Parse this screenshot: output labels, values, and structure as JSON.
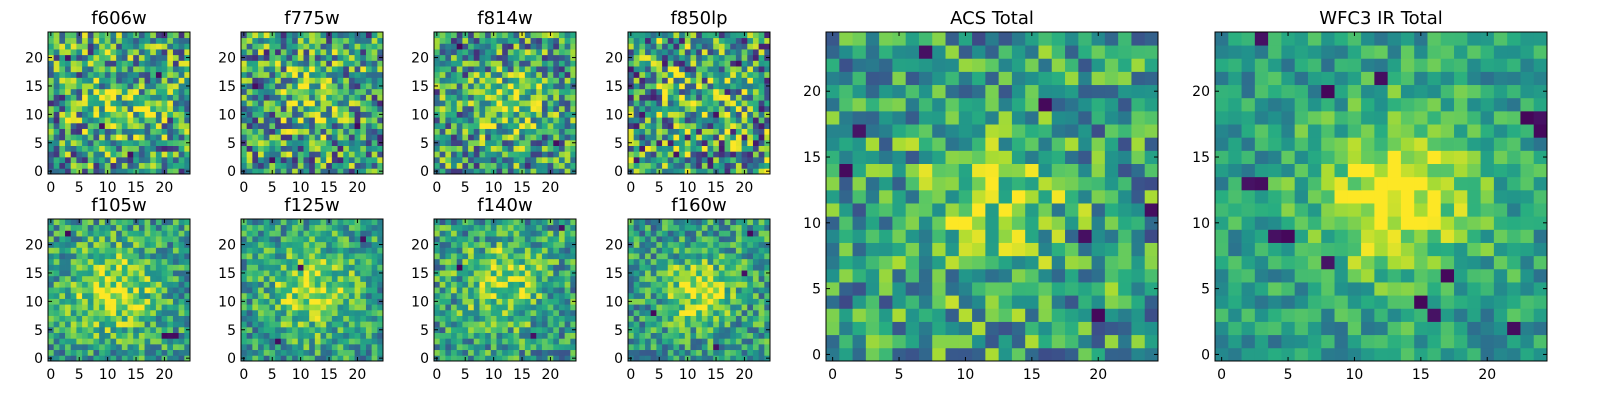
{
  "chart_data": [
    {
      "type": "heatmap",
      "title": "f606w",
      "x_ticks": [
        0,
        5,
        10,
        15,
        20
      ],
      "y_ticks": [
        0,
        5,
        10,
        15,
        20
      ],
      "xlim": [
        -0.5,
        24.5
      ],
      "ylim": [
        -0.5,
        24.5
      ],
      "size": 25,
      "peak": [
        12,
        12
      ],
      "sigma": 4.5,
      "amp": 0.45,
      "noise": 0.85,
      "seed": 11,
      "deep": [
        [
          3,
          20
        ],
        [
          14,
          3
        ],
        [
          19,
          17
        ],
        [
          9,
          8
        ]
      ]
    },
    {
      "type": "heatmap",
      "title": "f775w",
      "x_ticks": [
        0,
        5,
        10,
        15,
        20
      ],
      "y_ticks": [
        0,
        5,
        10,
        15,
        20
      ],
      "xlim": [
        -0.5,
        24.5
      ],
      "ylim": [
        -0.5,
        24.5
      ],
      "size": 25,
      "peak": [
        12,
        14
      ],
      "sigma": 4,
      "amp": 0.5,
      "noise": 0.85,
      "seed": 23,
      "deep": [
        [
          5,
          2
        ],
        [
          20,
          8
        ],
        [
          2,
          15
        ]
      ]
    },
    {
      "type": "heatmap",
      "title": "f814w",
      "x_ticks": [
        0,
        5,
        10,
        15,
        20
      ],
      "y_ticks": [
        0,
        5,
        10,
        15,
        20
      ],
      "xlim": [
        -0.5,
        24.5
      ],
      "ylim": [
        -0.5,
        24.5
      ],
      "size": 25,
      "peak": [
        13,
        12
      ],
      "sigma": 3.8,
      "amp": 0.6,
      "noise": 0.8,
      "seed": 37,
      "deep": [
        [
          21,
          5
        ],
        [
          4,
          22
        ]
      ]
    },
    {
      "type": "heatmap",
      "title": "f850lp",
      "x_ticks": [
        0,
        5,
        10,
        15,
        20
      ],
      "y_ticks": [
        0,
        5,
        10,
        15,
        20
      ],
      "xlim": [
        -0.5,
        24.5
      ],
      "ylim": [
        -0.5,
        24.5
      ],
      "size": 25,
      "peak": [
        12,
        12
      ],
      "sigma": 4,
      "amp": 0.3,
      "noise": 0.95,
      "seed": 51,
      "deep": [
        [
          8,
          3
        ],
        [
          19,
          19
        ],
        [
          15,
          10
        ]
      ]
    },
    {
      "type": "heatmap",
      "title": "f105w",
      "x_ticks": [
        0,
        5,
        10,
        15,
        20
      ],
      "y_ticks": [
        0,
        5,
        10,
        15,
        20
      ],
      "xlim": [
        -0.5,
        24.5
      ],
      "ylim": [
        -0.5,
        24.5
      ],
      "size": 25,
      "peak": [
        11,
        12
      ],
      "sigma": 5.5,
      "amp": 0.7,
      "noise": 0.55,
      "seed": 67,
      "deep": [
        [
          21,
          4
        ],
        [
          22,
          4
        ],
        [
          20,
          4
        ],
        [
          3,
          22
        ]
      ]
    },
    {
      "type": "heatmap",
      "title": "f125w",
      "x_ticks": [
        0,
        5,
        10,
        15,
        20
      ],
      "y_ticks": [
        0,
        5,
        10,
        15,
        20
      ],
      "xlim": [
        -0.5,
        24.5
      ],
      "ylim": [
        -0.5,
        24.5
      ],
      "size": 25,
      "peak": [
        12,
        12
      ],
      "sigma": 5,
      "amp": 0.7,
      "noise": 0.55,
      "seed": 79,
      "deep": [
        [
          10,
          16
        ],
        [
          6,
          3
        ],
        [
          21,
          21
        ]
      ]
    },
    {
      "type": "heatmap",
      "title": "f140w",
      "x_ticks": [
        0,
        5,
        10,
        15,
        20
      ],
      "y_ticks": [
        0,
        5,
        10,
        15,
        20
      ],
      "xlim": [
        -0.5,
        24.5
      ],
      "ylim": [
        -0.5,
        24.5
      ],
      "size": 25,
      "peak": [
        12,
        13
      ],
      "sigma": 5,
      "amp": 0.65,
      "noise": 0.6,
      "seed": 83,
      "deep": [
        [
          22,
          23
        ],
        [
          4,
          16
        ],
        [
          17,
          4
        ]
      ]
    },
    {
      "type": "heatmap",
      "title": "f160w",
      "x_ticks": [
        0,
        5,
        10,
        15,
        20
      ],
      "y_ticks": [
        0,
        5,
        10,
        15,
        20
      ],
      "xlim": [
        -0.5,
        24.5
      ],
      "ylim": [
        -0.5,
        24.5
      ],
      "size": 25,
      "peak": [
        12,
        12
      ],
      "sigma": 4,
      "amp": 0.75,
      "noise": 0.55,
      "seed": 97,
      "deep": [
        [
          15,
          2
        ],
        [
          4,
          8
        ],
        [
          20,
          15
        ],
        [
          21,
          22
        ]
      ]
    },
    {
      "type": "heatmap",
      "title": "ACS Total",
      "x_ticks": [
        0,
        5,
        10,
        15,
        20
      ],
      "y_ticks": [
        0,
        5,
        10,
        15,
        20
      ],
      "xlim": [
        -0.5,
        24.5
      ],
      "ylim": [
        -0.5,
        24.5
      ],
      "size": 25,
      "peak": [
        12,
        11
      ],
      "sigma": 4,
      "amp": 0.55,
      "noise": 0.65,
      "seed": 113,
      "deep": [
        [
          7,
          23
        ],
        [
          2,
          17
        ],
        [
          16,
          19
        ],
        [
          19,
          9
        ],
        [
          24,
          11
        ],
        [
          1,
          14
        ],
        [
          20,
          3
        ]
      ]
    },
    {
      "type": "heatmap",
      "title": "WFC3 IR Total",
      "x_ticks": [
        0,
        5,
        10,
        15,
        20
      ],
      "y_ticks": [
        0,
        5,
        10,
        15,
        20
      ],
      "xlim": [
        -0.5,
        24.5
      ],
      "ylim": [
        -0.5,
        24.5
      ],
      "size": 25,
      "peak": [
        13,
        12
      ],
      "sigma": 4.5,
      "amp": 0.9,
      "noise": 0.4,
      "seed": 131,
      "deep": [
        [
          3,
          13
        ],
        [
          2,
          13
        ],
        [
          5,
          9
        ],
        [
          4,
          9
        ],
        [
          15,
          4
        ],
        [
          16,
          3
        ],
        [
          22,
          2
        ],
        [
          8,
          7
        ],
        [
          17,
          6
        ],
        [
          24,
          18
        ],
        [
          23,
          18
        ],
        [
          24,
          17
        ],
        [
          3,
          24
        ],
        [
          8,
          20
        ],
        [
          12,
          21
        ]
      ]
    }
  ],
  "colors": {
    "low": "#440154",
    "mid": "#21918c",
    "high": "#fde725"
  }
}
